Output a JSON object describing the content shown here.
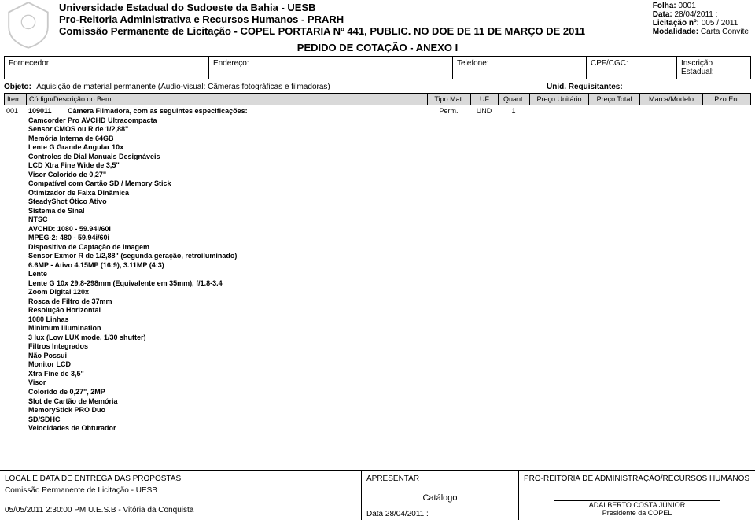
{
  "colors": {
    "header_bg": "#d9d9d9",
    "border": "#000000",
    "text": "#000000",
    "bg": "#ffffff"
  },
  "font": {
    "family": "Arial",
    "base_size": 10,
    "title_size": 13,
    "cell_size": 9
  },
  "header": {
    "org1": "Universidade Estadual do Sudoeste da Bahia - UESB",
    "org2": "Pro-Reitoria Administrativa e Recursos Humanos  - PRARH",
    "org3": "Comissão Permanente de Licitação - COPEL PORTARIA Nº 441, PUBLIC. NO DOE DE 11 DE MARÇO DE 2011",
    "meta": {
      "folha_lbl": "Folha:",
      "folha_val": "0001",
      "data_lbl": "Data:",
      "data_val": "28/04/2011 :",
      "lic_lbl": "Licitação nº:",
      "lic_val": "005   / 2011",
      "mod_lbl": "Modalidade:",
      "mod_val": "Carta Convite"
    }
  },
  "title": "PEDIDO DE COTAÇÃO - ANEXO I",
  "supplier": {
    "fornecedor": "Fornecedor:",
    "endereco": "Endereço:",
    "telefone": "Telefone:",
    "cpfcgc": "CPF/CGC:",
    "inscricao": "Inscrição Estadual:"
  },
  "objeto": {
    "label": "Objeto:",
    "text": "Aquisição de material permanente (Audio-visual: Câmeras fotográficas e filmadoras)",
    "req_label": "Unid. Requisitantes:"
  },
  "columns": {
    "item": "Item",
    "desc": "Código/Descrição do Bem",
    "tipo": "Tipo Mat.",
    "uf": "UF",
    "quant": "Quant.",
    "pu": "Preço Unitário",
    "pt": "Preço Total",
    "mm": "Marca/Modelo",
    "pzo": "Pzo.Ent"
  },
  "row": {
    "item": "001",
    "codigo": "109011",
    "tipo": "Perm.",
    "uf": "UND",
    "quant": "1",
    "desc_lines": [
      "Câmera Filmadora, com as seguintes especificações:",
      "Camcorder Pro AVCHD Ultracompacta",
      "Sensor CMOS ou R de 1/2,88\"",
      "Memória Interna de 64GB",
      "Lente G Grande Angular 10x",
      "Controles de Dial Manuais Designáveis",
      "LCD Xtra Fine Wide de 3,5\"",
      "Visor Colorido de 0,27\"",
      "Compatível com Cartão SD / Memory Stick",
      "Otimizador de Faixa Dinâmica",
      "SteadyShot Ótico Ativo",
      "Sistema de Sinal",
      "NTSC",
      "AVCHD: 1080 - 59.94i/60i",
      "MPEG-2: 480 - 59.94i/60i",
      "Dispositivo de Captação de Imagem",
      "Sensor Exmor R de 1/2,88\" (segunda geração, retroiluminado)",
      "6.6MP - Ativo 4.15MP (16:9), 3.11MP (4:3)",
      "Lente",
      "Lente G 10x 29.8-298mm (Equivalente em 35mm), f/1.8-3.4",
      "Zoom Digital 120x",
      "Rosca de Filtro de 37mm",
      "Resolução Horizontal",
      "1080 Linhas",
      "Minimum Illumination",
      "3 lux (Low LUX mode, 1/30 shutter)",
      "Filtros Integrados",
      "Não Possui",
      "Monitor LCD",
      "Xtra Fine de 3,5\"",
      "Visor",
      "Colorido de 0,27\", 2MP",
      "Slot de Cartão de Memória",
      "MemoryStick PRO Duo",
      "SD/SDHC",
      "Velocidades de Obturador"
    ]
  },
  "footer": {
    "left_title": "LOCAL E DATA DE ENTREGA DAS PROPOSTAS",
    "left_line2": "Comissão Permanente de Licitação - UESB",
    "left_line3": "05/05/2011 2:30:00 PM  U.E.S.B - Vitória da Conquista",
    "mid_title": "APRESENTAR",
    "mid_catalogo": "Catálogo",
    "mid_date": "Data 28/04/2011 :",
    "right_title": "PRO-REITORIA DE ADMINISTRAÇÃO/RECURSOS HUMANOS",
    "right_sig_name": "ADALBERTO COSTA JÚNIOR",
    "right_sig_role": "Presidente da COPEL"
  }
}
